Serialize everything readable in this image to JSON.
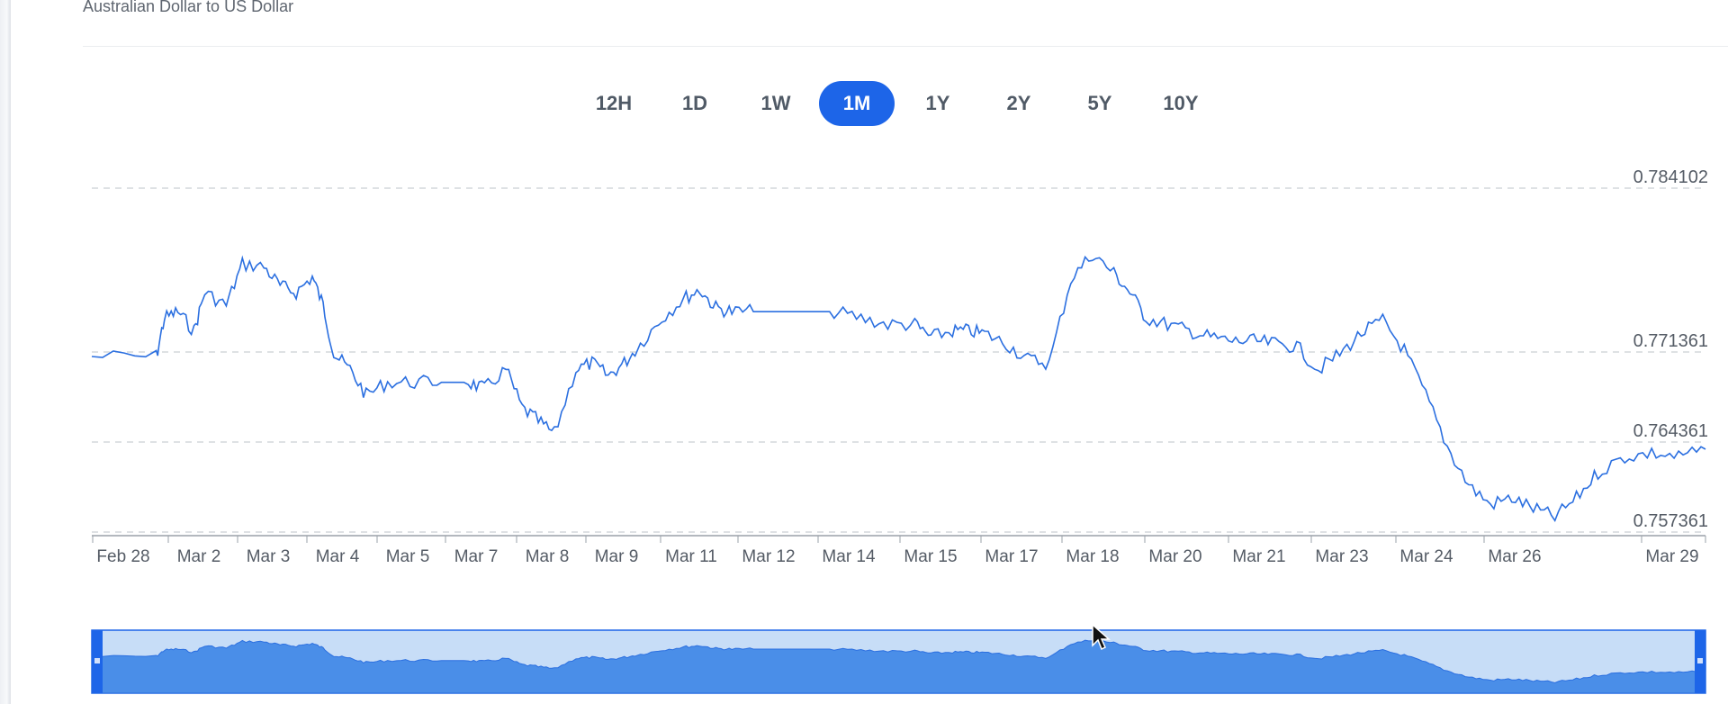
{
  "subtitle": "Australian Dollar to US Dollar",
  "ranges": [
    {
      "label": "12H",
      "active": false
    },
    {
      "label": "1D",
      "active": false
    },
    {
      "label": "1W",
      "active": false
    },
    {
      "label": "1M",
      "active": true
    },
    {
      "label": "1Y",
      "active": false
    },
    {
      "label": "2Y",
      "active": false
    },
    {
      "label": "5Y",
      "active": false
    },
    {
      "label": "10Y",
      "active": false
    }
  ],
  "colors": {
    "line": "#2b6fe0",
    "accent": "#1d65e8",
    "navigator_fill": "#4a8ee8",
    "navigator_bg": "#c7ddf7",
    "handle": "#1d65e8"
  },
  "chart_data": {
    "type": "line",
    "series_name": "",
    "x_tick_labels": [
      "Feb 28",
      "Mar 2",
      "Mar 3",
      "Mar 4",
      "Mar 5",
      "Mar 7",
      "Mar 8",
      "Mar 9",
      "Mar 11",
      "Mar 12",
      "Mar 14",
      "Mar 15",
      "Mar 17",
      "Mar 18",
      "Mar 20",
      "Mar 21",
      "Mar 23",
      "Mar 24",
      "Mar 26",
      "Mar 29"
    ],
    "y_tick_labels": [
      "0.784102",
      "0.771361",
      "0.764361",
      "0.757361"
    ],
    "y_ticks": [
      0.784102,
      0.771361,
      0.764361,
      0.757361
    ],
    "ylim": [
      0.757361,
      0.784102
    ],
    "grid": "horizontal-dashed",
    "x_unit": "days since Feb 28",
    "x": [
      0,
      1.2,
      1.35,
      1.6,
      1.9,
      2.1,
      2.5,
      2.8,
      3.2,
      3.5,
      3.8,
      4.1,
      4.3,
      4.5,
      4.8,
      5.1,
      5.5,
      6.0,
      6.5,
      7.0,
      7.3,
      7.7,
      8.0,
      8.3,
      8.6,
      9.0,
      9.3,
      9.6,
      9.9,
      10.2,
      10.6,
      11.0,
      11.3,
      11.6,
      11.9,
      12.3,
      12.8,
      13.3,
      13.8,
      14.3,
      14.8,
      15.3,
      15.6,
      16.0,
      16.3,
      16.6,
      17.0,
      17.4,
      17.8,
      18.2,
      18.6,
      19.0,
      19.3,
      19.6,
      20.0,
      20.4,
      20.8,
      21.2,
      21.6,
      22.0,
      22.4,
      22.8,
      23.2,
      23.6,
      24.0,
      24.4,
      24.8,
      25.2,
      25.6,
      26.0,
      26.4,
      26.8,
      27.2,
      27.6,
      28.0,
      28.5,
      29.0,
      29.5,
      30.0
    ],
    "values": [
      0.771,
      0.771,
      0.774,
      0.7745,
      0.773,
      0.776,
      0.775,
      0.7782,
      0.778,
      0.7765,
      0.776,
      0.7772,
      0.775,
      0.7712,
      0.77,
      0.768,
      0.769,
      0.769,
      0.769,
      0.769,
      0.7685,
      0.77,
      0.767,
      0.766,
      0.765,
      0.77,
      0.7705,
      0.7695,
      0.7705,
      0.772,
      0.774,
      0.7755,
      0.7762,
      0.7748,
      0.7745,
      0.7745,
      0.7745,
      0.7745,
      0.7745,
      0.774,
      0.7735,
      0.7735,
      0.7725,
      0.773,
      0.773,
      0.7728,
      0.772,
      0.7708,
      0.7705,
      0.777,
      0.779,
      0.7775,
      0.776,
      0.774,
      0.7735,
      0.773,
      0.7725,
      0.7722,
      0.7722,
      0.772,
      0.7718,
      0.77,
      0.7712,
      0.7728,
      0.7738,
      0.7715,
      0.768,
      0.764,
      0.761,
      0.7595,
      0.76,
      0.7592,
      0.7585,
      0.76,
      0.762,
      0.7632,
      0.7635,
      0.7632,
      0.7638
    ]
  }
}
